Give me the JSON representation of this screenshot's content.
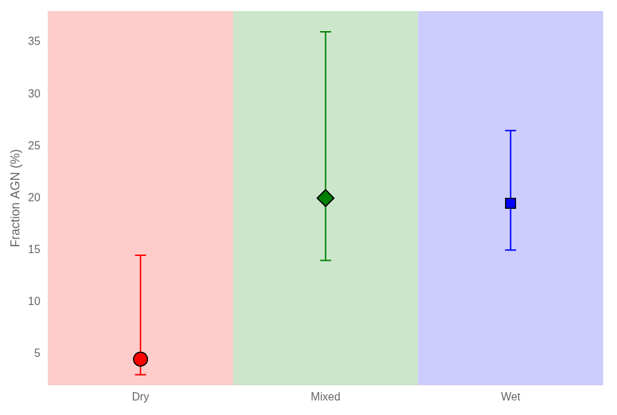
{
  "chart_data": {
    "type": "scatter",
    "categories": [
      "Dry",
      "Mixed",
      "Wet"
    ],
    "values": [
      4.5,
      20.0,
      19.5
    ],
    "err_low": [
      1.5,
      6.0,
      4.5
    ],
    "err_high": [
      10.0,
      16.0,
      7.0
    ],
    "colors": [
      "red",
      "green",
      "blue"
    ],
    "marker": [
      "circle",
      "diamond",
      "square"
    ],
    "ylabel": "Fraction AGN (%)",
    "ylim": [
      2.0,
      38.0
    ],
    "yticks": [
      5,
      10,
      15,
      20,
      25,
      30,
      35
    ],
    "grid": false
  }
}
